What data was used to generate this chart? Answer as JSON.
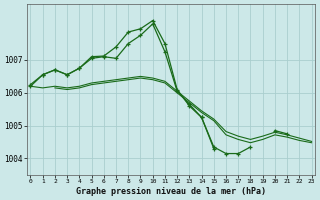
{
  "bg_color": "#cce8e8",
  "grid_color": "#aacece",
  "line_color": "#1a6b1a",
  "xlabel": "Graphe pression niveau de la mer (hPa)",
  "yticks": [
    1004,
    1005,
    1006,
    1007
  ],
  "xticks": [
    0,
    1,
    2,
    3,
    4,
    5,
    6,
    7,
    8,
    9,
    10,
    11,
    12,
    13,
    14,
    15,
    16,
    17,
    18,
    19,
    20,
    21,
    22,
    23
  ],
  "ylim": [
    1003.5,
    1008.7
  ],
  "xlim": [
    -0.3,
    23.3
  ],
  "line_zigzag": {
    "x": [
      0,
      1,
      2,
      3,
      4,
      5,
      6,
      7,
      8,
      9,
      10,
      11,
      12,
      13,
      14,
      15,
      16,
      17,
      18,
      19,
      20,
      21,
      22,
      23
    ],
    "y": [
      1006.2,
      1006.55,
      1006.7,
      1006.55,
      1006.75,
      1007.05,
      1007.1,
      1007.05,
      1007.5,
      1007.75,
      1008.1,
      1007.25,
      1006.05,
      1005.65,
      1005.25,
      1004.35,
      1004.15,
      1004.15,
      1004.35,
      null,
      1004.85,
      1004.75,
      null,
      null
    ]
  },
  "line_high": {
    "x": [
      0,
      1,
      2,
      3,
      4,
      5,
      6,
      7,
      8,
      9,
      10,
      11,
      12,
      13,
      14,
      15
    ],
    "y": [
      1006.25,
      1006.55,
      1006.7,
      1006.55,
      1006.75,
      1007.1,
      1007.12,
      1007.4,
      1007.85,
      1007.95,
      1008.2,
      1007.5,
      1006.1,
      1005.6,
      1005.25,
      1004.3
    ]
  },
  "line_flat1": {
    "x": [
      0,
      1,
      2,
      3,
      4,
      5,
      6,
      7,
      8,
      9,
      10,
      11,
      12,
      13,
      14,
      15,
      16,
      17,
      18,
      19,
      20,
      21,
      22,
      23
    ],
    "y": [
      1006.2,
      1006.15,
      1006.2,
      1006.15,
      1006.2,
      1006.3,
      1006.35,
      1006.4,
      1006.45,
      1006.5,
      1006.45,
      1006.35,
      1006.05,
      1005.75,
      1005.45,
      1005.2,
      1004.82,
      1004.68,
      1004.58,
      1004.68,
      1004.8,
      1004.72,
      1004.62,
      1004.52
    ]
  },
  "line_flat2": {
    "x": [
      2,
      3,
      4,
      5,
      6,
      7,
      8,
      9,
      10,
      11,
      12,
      13,
      14,
      15,
      16,
      17,
      18,
      19,
      20,
      21,
      22,
      23
    ],
    "y": [
      1006.15,
      1006.1,
      1006.15,
      1006.25,
      1006.3,
      1006.35,
      1006.4,
      1006.45,
      1006.4,
      1006.3,
      1006.0,
      1005.7,
      1005.4,
      1005.15,
      1004.72,
      1004.58,
      1004.48,
      1004.58,
      1004.72,
      1004.65,
      1004.55,
      1004.48
    ]
  }
}
